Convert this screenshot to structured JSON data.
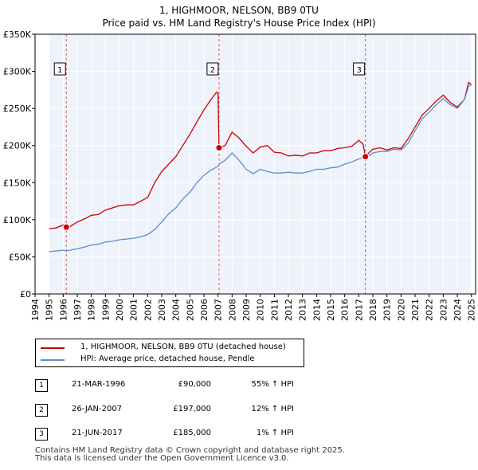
{
  "chart_data": {
    "type": "line",
    "title": "1, HIGHMOOR, NELSON, BB9 0TU",
    "subtitle": "Price paid vs. HM Land Registry's House Price Index (HPI)",
    "xlabel": "",
    "ylabel": "",
    "xlim": [
      1994,
      2025.3
    ],
    "ylim": [
      0,
      350000
    ],
    "grid": true,
    "x_ticks": [
      "1994",
      "1995",
      "1996",
      "1997",
      "1998",
      "1999",
      "2000",
      "2001",
      "2002",
      "2003",
      "2004",
      "2005",
      "2006",
      "2007",
      "2008",
      "2009",
      "2010",
      "2011",
      "2012",
      "2013",
      "2014",
      "2015",
      "2016",
      "2017",
      "2018",
      "2019",
      "2020",
      "2021",
      "2022",
      "2023",
      "2024",
      "2025"
    ],
    "y_ticks": [
      {
        "value": 0,
        "label": "£0"
      },
      {
        "value": 50000,
        "label": "£50K"
      },
      {
        "value": 100000,
        "label": "£100K"
      },
      {
        "value": 150000,
        "label": "£150K"
      },
      {
        "value": 200000,
        "label": "£200K"
      },
      {
        "value": 250000,
        "label": "£250K"
      },
      {
        "value": 300000,
        "label": "£300K"
      },
      {
        "value": 350000,
        "label": "£350K"
      }
    ],
    "series": [
      {
        "name": "1, HIGHMOOR, NELSON, BB9 0TU (detached house)",
        "color": "#cc0000",
        "x": [
          1995.0,
          1995.5,
          1996.0,
          1996.22,
          1996.5,
          1997.0,
          1997.5,
          1998.0,
          1998.5,
          1999.0,
          1999.5,
          2000.0,
          2000.5,
          2001.0,
          2001.5,
          2002.0,
          2002.5,
          2003.0,
          2003.5,
          2004.0,
          2004.5,
          2005.0,
          2005.5,
          2006.0,
          2006.5,
          2006.9,
          2007.0,
          2007.07,
          2007.5,
          2008.0,
          2008.5,
          2009.0,
          2009.5,
          2010.0,
          2010.5,
          2011.0,
          2011.5,
          2012.0,
          2012.5,
          2013.0,
          2013.5,
          2014.0,
          2014.5,
          2015.0,
          2015.5,
          2016.0,
          2016.5,
          2017.0,
          2017.3,
          2017.47,
          2017.8,
          2018.0,
          2018.5,
          2019.0,
          2019.5,
          2020.0,
          2020.5,
          2021.0,
          2021.5,
          2022.0,
          2022.5,
          2023.0,
          2023.5,
          2024.0,
          2024.5,
          2024.8,
          2025.0
        ],
        "y": [
          88000,
          89000,
          93000,
          90000,
          91000,
          97000,
          101000,
          106000,
          107000,
          113000,
          116000,
          119000,
          120000,
          120000,
          125000,
          130000,
          150000,
          165000,
          175000,
          185000,
          200000,
          215000,
          232000,
          248000,
          262000,
          272000,
          270000,
          197000,
          200000,
          218000,
          210000,
          199000,
          190000,
          198000,
          200000,
          191000,
          190000,
          186000,
          187000,
          186000,
          190000,
          190000,
          193000,
          193000,
          196000,
          197000,
          199000,
          207000,
          202000,
          185000,
          192000,
          195000,
          197000,
          194000,
          197000,
          196000,
          209000,
          225000,
          241000,
          250000,
          260000,
          268000,
          258000,
          252000,
          262000,
          285000,
          282000
        ]
      },
      {
        "name": "HPI: Average price, detached house, Pendle",
        "color": "#5b8ecc",
        "x": [
          1995.0,
          1995.5,
          1996.0,
          1996.22,
          1996.5,
          1997.0,
          1997.5,
          1998.0,
          1998.5,
          1999.0,
          1999.5,
          2000.0,
          2000.5,
          2001.0,
          2001.5,
          2002.0,
          2002.5,
          2003.0,
          2003.5,
          2004.0,
          2004.5,
          2005.0,
          2005.5,
          2006.0,
          2006.5,
          2007.0,
          2007.07,
          2007.5,
          2008.0,
          2008.5,
          2009.0,
          2009.5,
          2010.0,
          2010.5,
          2011.0,
          2011.5,
          2012.0,
          2012.5,
          2013.0,
          2013.5,
          2014.0,
          2014.5,
          2015.0,
          2015.5,
          2016.0,
          2016.5,
          2017.0,
          2017.3,
          2017.47,
          2017.8,
          2018.0,
          2018.5,
          2019.0,
          2019.5,
          2020.0,
          2020.5,
          2021.0,
          2021.5,
          2022.0,
          2022.5,
          2023.0,
          2023.5,
          2024.0,
          2024.5,
          2024.8,
          2025.0
        ],
        "y": [
          57000,
          58000,
          59000,
          58000,
          59000,
          61000,
          63000,
          66000,
          67000,
          70000,
          71000,
          73000,
          74000,
          75000,
          77000,
          80000,
          87000,
          97000,
          108000,
          116000,
          128000,
          137000,
          150000,
          160000,
          167000,
          172000,
          175000,
          180000,
          190000,
          180000,
          168000,
          162000,
          168000,
          165000,
          163000,
          163000,
          164000,
          163000,
          163000,
          165000,
          168000,
          168000,
          170000,
          171000,
          175000,
          178000,
          182000,
          183000,
          183000,
          187000,
          190000,
          192000,
          192000,
          195000,
          194000,
          203000,
          220000,
          236000,
          245000,
          255000,
          263000,
          255000,
          250000,
          262000,
          280000,
          282000
        ]
      }
    ],
    "sales": [
      {
        "id": "1",
        "x": 1996.22,
        "y": 90000
      },
      {
        "id": "2",
        "x": 2007.07,
        "y": 197000
      },
      {
        "id": "3",
        "x": 2017.47,
        "y": 185000
      }
    ]
  },
  "table": {
    "rows": [
      {
        "id": "1",
        "date": "21-MAR-1996",
        "price": "£90,000",
        "hpi": "55% ↑ HPI"
      },
      {
        "id": "2",
        "date": "26-JAN-2007",
        "price": "£197,000",
        "hpi": "12% ↑ HPI"
      },
      {
        "id": "3",
        "date": "21-JUN-2017",
        "price": "£185,000",
        "hpi": "1% ↑ HPI"
      }
    ]
  },
  "footer": {
    "line1": "Contains HM Land Registry data © Crown copyright and database right 2025.",
    "line2": "This data is licensed under the Open Government Licence v3.0."
  }
}
